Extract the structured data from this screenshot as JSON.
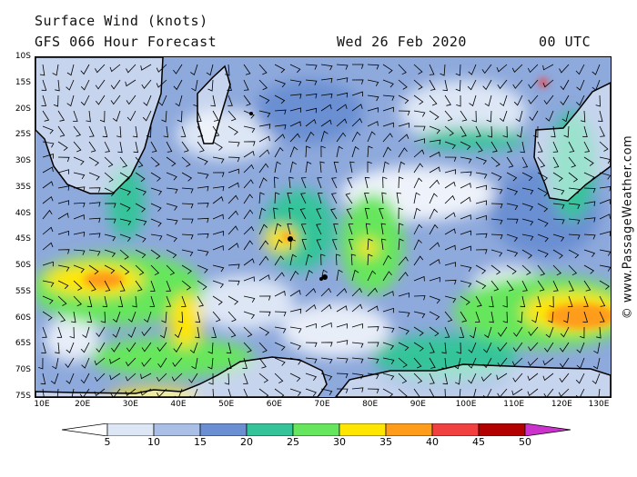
{
  "header": {
    "title": "Surface Wind (knots)",
    "forecast": "GFS 066 Hour Forecast",
    "date": "Wed 26 Feb 2020",
    "time": "00 UTC"
  },
  "credit": "© www.PassageWeather.com",
  "map": {
    "region": "Southern Indian Ocean",
    "lat_labels": [
      "10S",
      "15S",
      "20S",
      "25S",
      "30S",
      "35S",
      "40S",
      "45S",
      "50S",
      "55S",
      "60S",
      "65S",
      "70S",
      "75S"
    ],
    "lon_labels": [
      "10E",
      "20E",
      "30E",
      "40E",
      "50E",
      "60E",
      "70E",
      "80E",
      "90E",
      "100E",
      "110E",
      "120E",
      "130E"
    ],
    "lat_range": [
      -10,
      -75
    ],
    "lon_range": [
      10,
      130
    ]
  },
  "legend": {
    "labels": [
      "5",
      "10",
      "15",
      "20",
      "25",
      "30",
      "35",
      "40",
      "45",
      "50"
    ],
    "colors": [
      "#ffffff",
      "#dde6f5",
      "#a9bfe6",
      "#6a8fd2",
      "#35c49a",
      "#66e65c",
      "#ffe600",
      "#ff9c1a",
      "#f04040",
      "#b30000",
      "#cc33cc"
    ]
  }
}
